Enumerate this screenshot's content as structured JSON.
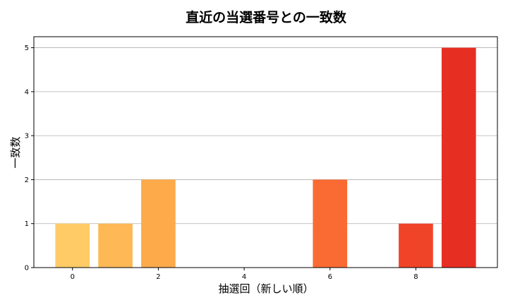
{
  "chart_data": {
    "type": "bar",
    "title": "直近の当選番号との一致数",
    "xlabel": "抽選回（新しい順）",
    "ylabel": "一致数",
    "x": [
      0,
      1,
      2,
      3,
      4,
      5,
      6,
      7,
      8,
      9
    ],
    "values": [
      1,
      1,
      2,
      0,
      0,
      0,
      2,
      0,
      1,
      5
    ],
    "colors": [
      "#fecb66",
      "#feb856",
      "#fdaa4a",
      "#fd9a40",
      "#fd8a38",
      "#fc7a32",
      "#fa6b33",
      "#f55a2d",
      "#f04428",
      "#e62f22"
    ],
    "xticks": [
      0,
      2,
      4,
      6,
      8
    ],
    "yticks": [
      0,
      1,
      2,
      3,
      4,
      5
    ],
    "xlim": [
      -0.9,
      9.9
    ],
    "ylim": [
      0,
      5.25
    ],
    "grid": "y",
    "legend": "none"
  }
}
